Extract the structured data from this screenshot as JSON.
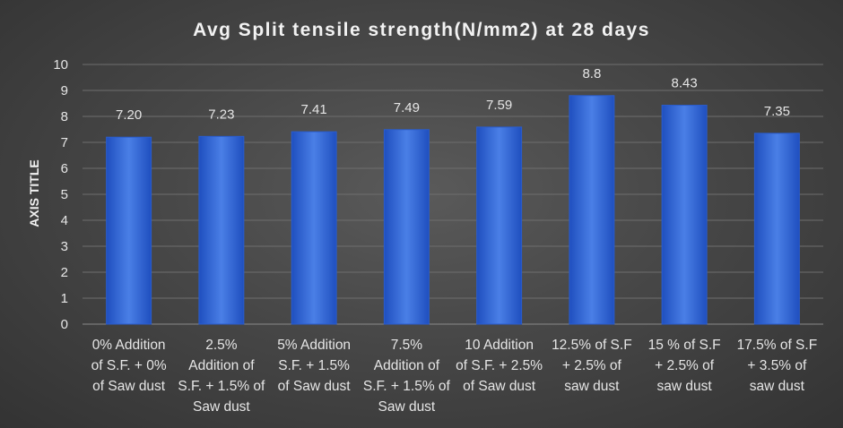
{
  "chart_data": {
    "type": "bar",
    "title": "Avg Split tensile strength(N/mm2) at 28 days",
    "xlabel": "",
    "ylabel": "AXIS TITLE",
    "ylim": [
      0,
      10
    ],
    "yticks": [
      "0",
      "1",
      "2",
      "3",
      "4",
      "5",
      "6",
      "7",
      "8",
      "9",
      "10"
    ],
    "grid": true,
    "categories": [
      [
        "0% Addition",
        "of S.F. + 0%",
        "of Saw dust"
      ],
      [
        "2.5%",
        "Addition of",
        "S.F. + 1.5% of",
        "Saw dust"
      ],
      [
        "5% Addition",
        "S.F. + 1.5%",
        "of Saw dust"
      ],
      [
        "7.5%",
        "Addition of",
        "S.F. + 1.5% of",
        "Saw dust"
      ],
      [
        "10 Addition",
        "of S.F. + 2.5%",
        "of Saw dust"
      ],
      [
        "12.5% of S.F",
        "+ 2.5% of",
        "saw dust"
      ],
      [
        "15 % of S.F",
        "+ 2.5% of",
        "saw dust"
      ],
      [
        "17.5% of S.F",
        "+ 3.5% of",
        "saw dust"
      ]
    ],
    "values": [
      7.2,
      7.23,
      7.41,
      7.49,
      7.59,
      8.8,
      8.43,
      7.35
    ],
    "data_labels": [
      "7.20",
      "7.23",
      "7.41",
      "7.49",
      "7.59",
      "8.8",
      "8.43",
      "7.35"
    ],
    "colors": {
      "bar_top": "#4a7fe6",
      "bar_bottom": "#1f4fbf",
      "bar_edge": "#2a5ccc"
    }
  }
}
